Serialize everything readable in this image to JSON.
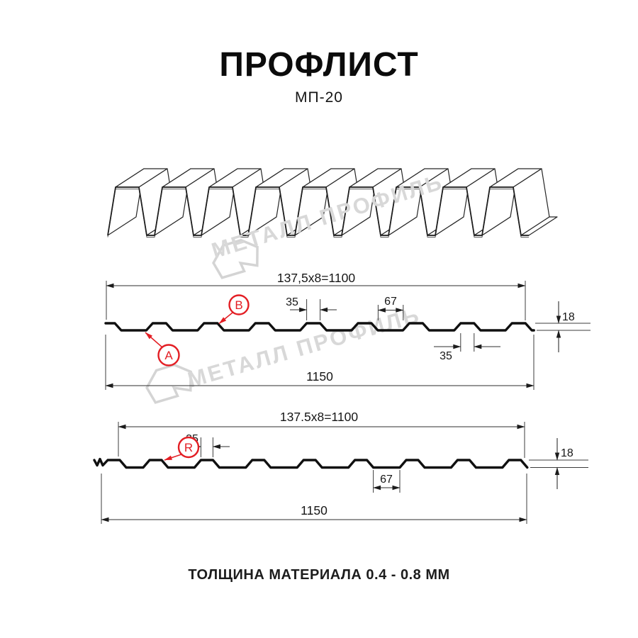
{
  "title": "ПРОФЛИСТ",
  "product_code": "МП-20",
  "footer_note": "ТОЛЩИНА МАТЕРИАЛА 0.4 - 0.8 ММ",
  "watermark": {
    "text": "МЕТАЛЛ ПРОФИЛЬ"
  },
  "colors": {
    "ink": "#111111",
    "red": "#e31e24",
    "watermark": "#d8d8d8"
  },
  "section_a": {
    "dims": {
      "module": "137,5x8=1100",
      "rib_top_width": "35",
      "rib_gap": "67",
      "height": "18",
      "rib_bottom_width": "35",
      "overall": "1150"
    },
    "labels": {
      "a": "A",
      "b": "B"
    }
  },
  "section_r": {
    "dims": {
      "module": "137.5x8=1100",
      "rib_top_width": "35",
      "valley_width": "67",
      "height": "18",
      "overall": "1150"
    },
    "labels": {
      "r": "R"
    }
  }
}
